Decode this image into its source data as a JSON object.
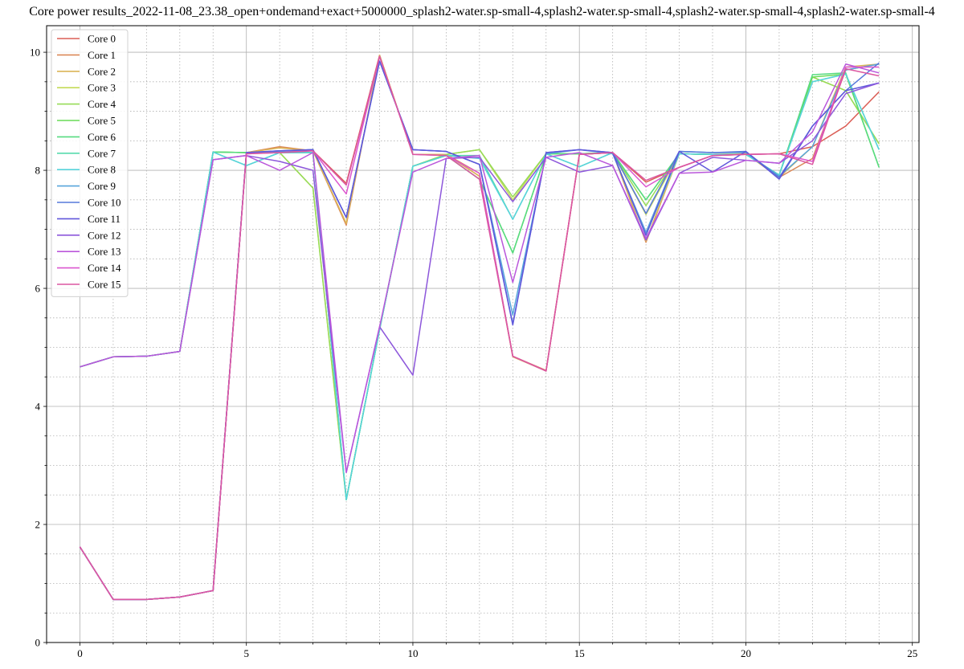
{
  "chart_data": {
    "type": "line",
    "title": "Core power results_2022-11-08_23.38_open+ondemand+exact+5000000_splash2-water.sp-small-4,splash2-water.sp-small-4,splash2-water.sp-small-4,splash2-water.sp-small-4",
    "xlabel": "",
    "ylabel": "",
    "xlim": [
      -1,
      25.2
    ],
    "ylim": [
      0,
      10.45
    ],
    "x_ticks": [
      0,
      5,
      10,
      15,
      20,
      25
    ],
    "y_ticks": [
      0,
      2,
      4,
      6,
      8,
      10
    ],
    "x_minor_step": 1,
    "y_minor_step": 0.5,
    "grid": {
      "major": true,
      "minor": true
    },
    "legend_position": "top-left",
    "x": [
      0,
      1,
      2,
      3,
      4,
      5,
      6,
      7,
      8,
      9,
      10,
      11,
      12,
      13,
      14,
      15,
      16,
      17,
      18,
      19,
      20,
      21,
      22,
      23,
      24
    ],
    "series": [
      {
        "name": "Core 0",
        "color": "#db5f57",
        "values": [
          1.62,
          0.73,
          0.73,
          0.77,
          0.88,
          8.29,
          8.33,
          8.33,
          7.78,
          9.95,
          8.27,
          8.27,
          7.9,
          4.85,
          4.6,
          8.27,
          8.3,
          7.8,
          8.05,
          8.25,
          8.27,
          8.28,
          8.4,
          8.75,
          9.33
        ]
      },
      {
        "name": "Core 1",
        "color": "#db8857",
        "values": [
          1.62,
          0.73,
          0.73,
          0.77,
          0.88,
          8.3,
          8.4,
          8.33,
          7.07,
          9.95,
          8.27,
          8.27,
          7.95,
          4.85,
          4.61,
          8.27,
          8.3,
          6.78,
          8.28,
          8.27,
          8.28,
          7.88,
          8.2,
          9.7,
          9.8
        ]
      },
      {
        "name": "Core 2",
        "color": "#dbb557",
        "values": [
          1.62,
          0.73,
          0.73,
          0.77,
          0.88,
          8.3,
          8.38,
          8.33,
          7.1,
          9.95,
          8.27,
          8.27,
          7.9,
          4.84,
          4.6,
          8.27,
          8.3,
          6.8,
          8.28,
          8.27,
          8.28,
          7.88,
          8.4,
          9.75,
          9.8
        ]
      },
      {
        "name": "Core 3",
        "color": "#c3db57",
        "values": [
          4.67,
          4.84,
          4.85,
          4.93,
          8.31,
          8.3,
          8.3,
          7.7,
          2.42,
          5.3,
          8.07,
          8.27,
          8.35,
          7.5,
          8.28,
          8.28,
          8.3,
          7.25,
          8.28,
          8.27,
          8.27,
          7.92,
          9.58,
          9.35,
          8.45
        ]
      },
      {
        "name": "Core 4",
        "color": "#96db57",
        "values": [
          4.67,
          4.84,
          4.85,
          4.93,
          8.31,
          8.3,
          8.3,
          7.7,
          2.42,
          5.3,
          8.07,
          8.27,
          8.35,
          7.55,
          8.28,
          8.28,
          8.3,
          7.4,
          8.28,
          8.27,
          8.27,
          7.92,
          9.58,
          9.35,
          8.45
        ]
      },
      {
        "name": "Core 5",
        "color": "#68db57",
        "values": [
          4.67,
          4.84,
          4.85,
          4.93,
          8.31,
          8.3,
          8.3,
          8.3,
          2.42,
          5.3,
          8.07,
          8.25,
          7.85,
          6.6,
          8.28,
          8.28,
          8.3,
          7.5,
          8.28,
          8.27,
          8.27,
          7.92,
          9.58,
          9.63,
          8.05
        ]
      },
      {
        "name": "Core 6",
        "color": "#57db80",
        "values": [
          4.67,
          4.84,
          4.85,
          4.93,
          8.31,
          8.3,
          8.3,
          8.3,
          2.42,
          5.3,
          8.07,
          8.25,
          7.85,
          6.6,
          8.28,
          8.28,
          8.3,
          7.5,
          8.28,
          8.27,
          8.27,
          7.92,
          9.62,
          9.65,
          8.05
        ]
      },
      {
        "name": "Core 7",
        "color": "#57dbad",
        "values": [
          4.67,
          4.84,
          4.85,
          4.93,
          8.31,
          8.08,
          8.3,
          8.3,
          2.42,
          5.3,
          8.07,
          8.25,
          8.25,
          7.17,
          8.28,
          8.06,
          8.3,
          6.9,
          8.28,
          8.27,
          8.27,
          7.92,
          9.5,
          9.63,
          8.35
        ]
      },
      {
        "name": "Core 8",
        "color": "#57d3db",
        "values": [
          4.67,
          4.84,
          4.85,
          4.93,
          8.31,
          8.08,
          8.3,
          8.3,
          2.42,
          5.3,
          8.07,
          8.25,
          8.2,
          7.17,
          8.28,
          8.06,
          8.3,
          6.9,
          8.28,
          8.27,
          8.27,
          7.92,
          9.5,
          9.63,
          8.35
        ]
      },
      {
        "name": "Core 9",
        "color": "#57a5db",
        "values": [
          1.62,
          0.73,
          0.73,
          0.77,
          0.88,
          8.3,
          8.32,
          8.35,
          7.2,
          9.85,
          8.35,
          8.32,
          8.1,
          5.55,
          8.28,
          8.35,
          8.28,
          6.95,
          8.32,
          8.3,
          8.3,
          7.9,
          8.4,
          9.7,
          9.8
        ]
      },
      {
        "name": "Core 10",
        "color": "#5778db",
        "values": [
          1.62,
          0.73,
          0.73,
          0.77,
          0.88,
          8.3,
          8.33,
          8.35,
          7.2,
          9.85,
          8.35,
          8.32,
          8.1,
          5.4,
          8.3,
          8.35,
          8.3,
          7.27,
          8.32,
          8.3,
          8.32,
          7.88,
          8.75,
          9.35,
          9.82
        ]
      },
      {
        "name": "Core 11",
        "color": "#6057db",
        "values": [
          1.62,
          0.73,
          0.73,
          0.77,
          0.88,
          8.3,
          8.33,
          8.35,
          7.2,
          9.85,
          8.35,
          8.32,
          8.1,
          5.38,
          8.3,
          8.35,
          8.3,
          6.9,
          8.32,
          7.97,
          8.32,
          7.85,
          8.75,
          9.35,
          9.48
        ]
      },
      {
        "name": "Core 12",
        "color": "#8d57db",
        "values": [
          4.67,
          4.84,
          4.85,
          4.93,
          8.18,
          8.25,
          8.15,
          8.0,
          2.88,
          5.35,
          4.53,
          8.2,
          8.22,
          7.47,
          8.22,
          7.97,
          8.08,
          6.82,
          7.95,
          8.22,
          8.17,
          8.12,
          8.5,
          9.3,
          9.48
        ]
      },
      {
        "name": "Core 13",
        "color": "#ba57db",
        "values": [
          4.67,
          4.84,
          4.85,
          4.93,
          8.18,
          8.25,
          8.0,
          8.3,
          2.88,
          5.35,
          7.97,
          8.2,
          8.25,
          6.1,
          8.22,
          8.3,
          8.08,
          6.85,
          7.95,
          7.97,
          8.17,
          8.12,
          8.65,
          9.8,
          9.65
        ]
      },
      {
        "name": "Core 14",
        "color": "#db57cf",
        "values": [
          1.62,
          0.73,
          0.73,
          0.77,
          0.88,
          8.28,
          8.3,
          8.33,
          7.6,
          9.93,
          8.27,
          8.25,
          7.95,
          4.85,
          4.6,
          8.27,
          8.3,
          7.72,
          8.05,
          8.25,
          8.27,
          8.28,
          8.15,
          9.75,
          9.75
        ]
      },
      {
        "name": "Core 15",
        "color": "#db57a1",
        "values": [
          1.62,
          0.73,
          0.73,
          0.77,
          0.88,
          8.28,
          8.3,
          8.33,
          7.75,
          9.93,
          8.27,
          8.25,
          7.85,
          4.85,
          4.6,
          8.27,
          8.3,
          7.83,
          8.05,
          8.25,
          8.27,
          8.28,
          8.1,
          9.72,
          9.6
        ]
      }
    ]
  }
}
